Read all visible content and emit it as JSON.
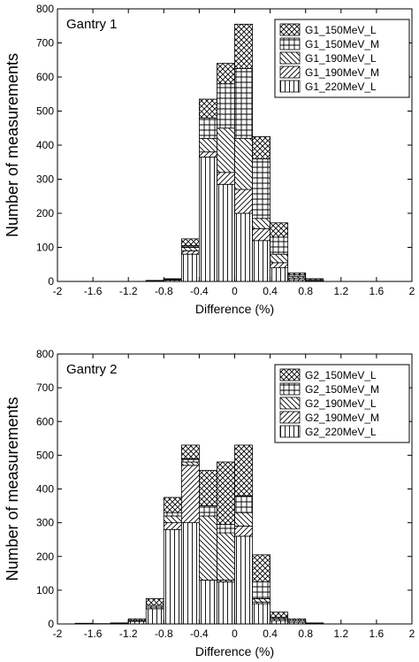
{
  "chart_data": [
    {
      "type": "histogram",
      "annotation": "Gantry 1",
      "x_label": "Difference (%)",
      "y_label": "Number of measurements",
      "bins": [
        -1.0,
        -0.8,
        -0.6,
        -0.4,
        -0.2,
        0,
        0.2,
        0.4,
        0.6,
        0.8,
        1.0
      ],
      "stacked": true,
      "legend": "upper right",
      "series": [
        {
          "name": "G1_150MeV_L",
          "pattern": "crosshatch",
          "values": [
            1,
            2,
            20,
            55,
            60,
            130,
            65,
            42,
            5,
            3
          ]
        },
        {
          "name": "G1_150MeV_M",
          "pattern": "grid",
          "values": [
            0,
            2,
            5,
            60,
            130,
            205,
            175,
            50,
            5,
            3
          ]
        },
        {
          "name": "G1_190MeV_L",
          "pattern": "backslash",
          "values": [
            0,
            0,
            10,
            40,
            130,
            150,
            30,
            25,
            5,
            0
          ]
        },
        {
          "name": "G1_190MeV_M",
          "pattern": "slash",
          "values": [
            0,
            0,
            10,
            15,
            35,
            70,
            35,
            15,
            5,
            0
          ]
        },
        {
          "name": "G1_220MeV_L",
          "pattern": "vertical",
          "values": [
            2,
            4,
            80,
            365,
            285,
            200,
            120,
            40,
            5,
            2
          ]
        }
      ],
      "xlim": [
        -2,
        2
      ],
      "xticks": [
        -2,
        -1.6,
        -1.2,
        -0.8,
        -0.4,
        0,
        0.4,
        0.8,
        1.2,
        1.6,
        2
      ],
      "ylim": [
        0,
        800
      ],
      "yticks": [
        0,
        100,
        200,
        300,
        400,
        500,
        600,
        700,
        800
      ]
    },
    {
      "type": "histogram",
      "annotation": "Gantry 2",
      "x_label": "Difference (%)",
      "y_label": "Number of measurements",
      "bins": [
        -1.8,
        -1.6,
        -1.4,
        -1.2,
        -1.0,
        -0.8,
        -0.6,
        -0.4,
        -0.2,
        0,
        0.2,
        0.4,
        0.6,
        0.8,
        1.0
      ],
      "stacked": true,
      "legend": "upper right",
      "series": [
        {
          "name": "G2_150MeV_L",
          "pattern": "crosshatch",
          "values": [
            0,
            0,
            1,
            5,
            20,
            45,
            40,
            105,
            185,
            150,
            80,
            15,
            5,
            1
          ]
        },
        {
          "name": "G2_150MeV_M",
          "pattern": "grid",
          "values": [
            0,
            0,
            0,
            2,
            5,
            10,
            10,
            30,
            25,
            50,
            50,
            5,
            5,
            1
          ]
        },
        {
          "name": "G2_190MeV_L",
          "pattern": "backslash",
          "values": [
            0,
            0,
            0,
            0,
            5,
            20,
            10,
            190,
            140,
            40,
            10,
            5,
            0,
            0
          ]
        },
        {
          "name": "G2_190MeV_M",
          "pattern": "slash",
          "values": [
            0,
            0,
            0,
            0,
            0,
            20,
            170,
            0,
            5,
            30,
            5,
            0,
            0,
            0
          ]
        },
        {
          "name": "G2_220MeV_L",
          "pattern": "vertical",
          "values": [
            2,
            1,
            2,
            8,
            45,
            280,
            300,
            130,
            125,
            260,
            60,
            10,
            5,
            1
          ]
        }
      ],
      "xlim": [
        -2,
        2
      ],
      "xticks": [
        -2,
        -1.6,
        -1.2,
        -0.8,
        -0.4,
        0,
        0.4,
        0.8,
        1.2,
        1.6,
        2
      ],
      "ylim": [
        0,
        800
      ],
      "yticks": [
        0,
        100,
        200,
        300,
        400,
        500,
        600,
        700,
        800
      ]
    }
  ]
}
